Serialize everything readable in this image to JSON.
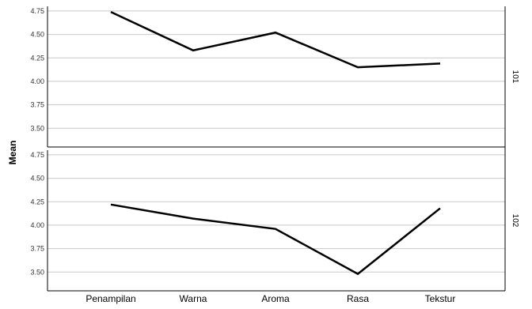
{
  "chart_data": {
    "type": "line",
    "ylabel": "Mean",
    "categories": [
      "Penampilan",
      "Warna",
      "Aroma",
      "Rasa",
      "Tekstur"
    ],
    "ylim": [
      3.3,
      4.8
    ],
    "yticks": [
      3.5,
      3.75,
      4.0,
      4.25,
      4.5,
      4.75
    ],
    "ytick_labels": [
      "3.50",
      "3.75",
      "4.00",
      "4.25",
      "4.50",
      "4.75"
    ],
    "grid": true,
    "line_color": "#000000",
    "grid_color": "#c8c8c8",
    "panels": [
      {
        "label": "101",
        "values": [
          4.74,
          4.33,
          4.52,
          4.15,
          4.19
        ]
      },
      {
        "label": "102",
        "values": [
          4.22,
          4.07,
          3.96,
          3.48,
          4.18
        ]
      }
    ]
  }
}
